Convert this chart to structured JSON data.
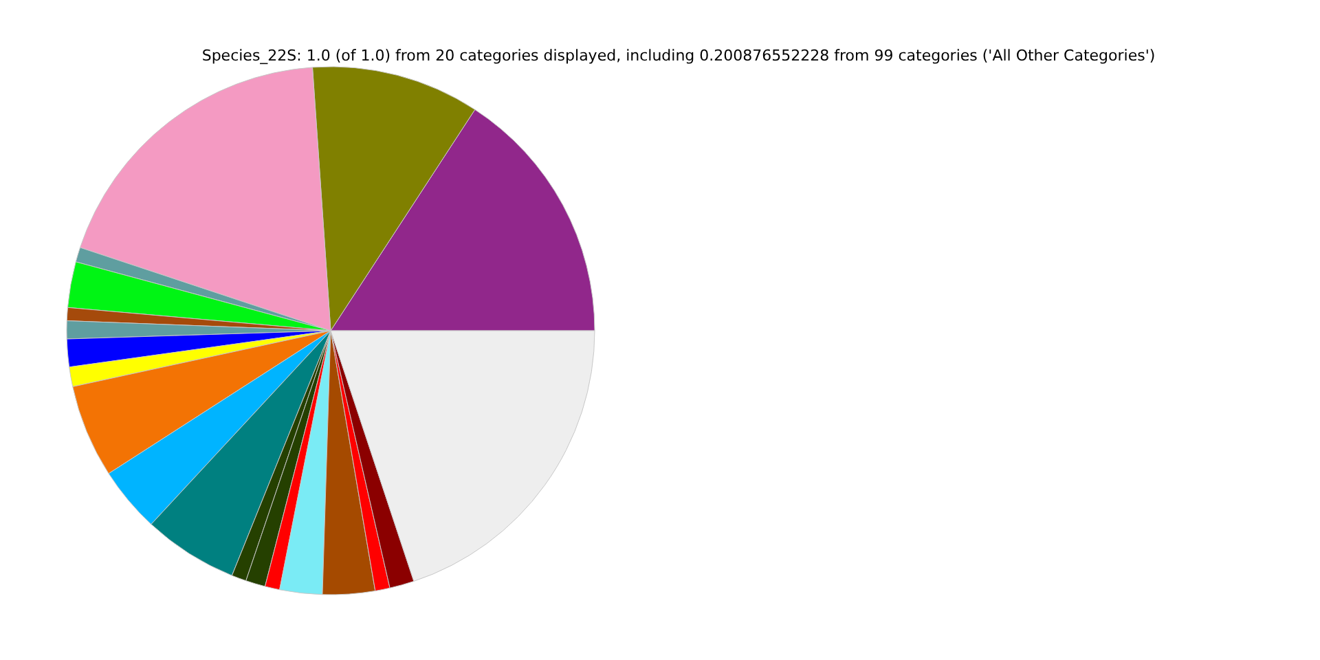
{
  "chart_data": {
    "type": "pie",
    "title": "Species_22S: 1.0 (of 1.0) from 20 categories displayed, including 0.200876552228 from 99 categories ('All Other Categories')",
    "categories": [
      null,
      null,
      null,
      null,
      null,
      null,
      null,
      null,
      null,
      null,
      null,
      null,
      null,
      null,
      null,
      null,
      null,
      null,
      null,
      null
    ],
    "values": [
      15.8,
      10.3,
      18.8,
      0.9,
      2.8,
      0.8,
      1.1,
      1.7,
      1.2,
      5.7,
      4.0,
      5.8,
      0.9,
      1.2,
      0.9,
      2.6,
      3.2,
      0.9,
      1.5,
      19.9
    ],
    "colors": [
      "#91278b",
      "#808000",
      "#f49ac2",
      "#5f9ea0",
      "#00f514",
      "#a54a0b",
      "#5f9ea0",
      "#0000ff",
      "#ffff00",
      "#f37304",
      "#00b4ff",
      "#008080",
      "#254000",
      "#254000",
      "#ff0000",
      "#7aebf5",
      "#a54a00",
      "#ff0000",
      "#8b0000",
      "#eeeeee"
    ]
  }
}
